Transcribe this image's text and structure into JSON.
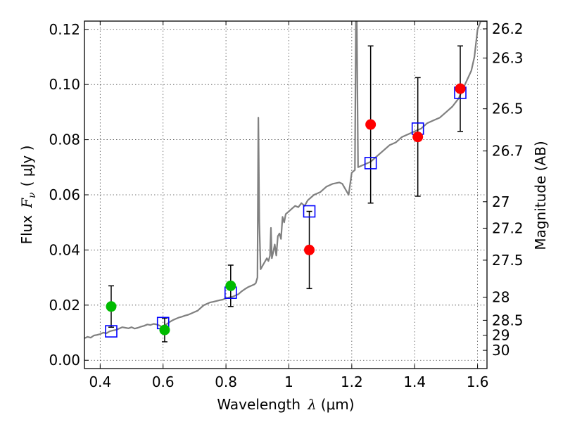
{
  "chart_data": {
    "type": "scatter",
    "xlabel_prefix": "Wavelength",
    "xlabel_symbol": "λ",
    "xlabel_unit": "(μm)",
    "ylabel_prefix": "Flux",
    "ylabel_symbol": "F",
    "ylabel_sub": "ν",
    "ylabel_unit": "( μJy )",
    "y2label": "Magnitude (AB)",
    "xlim": [
      0.35,
      1.63
    ],
    "ylim": [
      -0.003,
      0.123
    ],
    "xticks": [
      {
        "v": 0.4,
        "label": "0.4"
      },
      {
        "v": 0.6,
        "label": "0.6"
      },
      {
        "v": 0.8,
        "label": "0.8"
      },
      {
        "v": 1.0,
        "label": "1"
      },
      {
        "v": 1.2,
        "label": "1.2"
      },
      {
        "v": 1.4,
        "label": "1.4"
      },
      {
        "v": 1.6,
        "label": "1.6"
      }
    ],
    "yticks": [
      {
        "v": 0.0,
        "label": "0.00"
      },
      {
        "v": 0.02,
        "label": "0.02"
      },
      {
        "v": 0.04,
        "label": "0.04"
      },
      {
        "v": 0.06,
        "label": "0.06"
      },
      {
        "v": 0.08,
        "label": "0.08"
      },
      {
        "v": 0.1,
        "label": "0.10"
      },
      {
        "v": 0.12,
        "label": "0.12"
      }
    ],
    "mag_ticks": [
      {
        "flux": 0.1202,
        "label": "26.2"
      },
      {
        "flux": 0.1096,
        "label": "26.3"
      },
      {
        "flux": 0.0912,
        "label": "26.5"
      },
      {
        "flux": 0.0759,
        "label": "26.7"
      },
      {
        "flux": 0.0575,
        "label": "27"
      },
      {
        "flux": 0.0479,
        "label": "27.2"
      },
      {
        "flux": 0.0363,
        "label": "27.5"
      },
      {
        "flux": 0.0229,
        "label": "28"
      },
      {
        "flux": 0.0145,
        "label": "28.5"
      },
      {
        "flux": 0.0091,
        "label": "29"
      },
      {
        "flux": 0.0036,
        "label": "30"
      }
    ],
    "series": [
      {
        "name": "model-spectrum",
        "type": "line",
        "color": "#808080",
        "points": [
          [
            0.35,
            0.008
          ],
          [
            0.36,
            0.0085
          ],
          [
            0.37,
            0.0082
          ],
          [
            0.38,
            0.009
          ],
          [
            0.39,
            0.0092
          ],
          [
            0.4,
            0.0095
          ],
          [
            0.41,
            0.01
          ],
          [
            0.42,
            0.0098
          ],
          [
            0.43,
            0.0105
          ],
          [
            0.44,
            0.0108
          ],
          [
            0.45,
            0.011
          ],
          [
            0.46,
            0.0115
          ],
          [
            0.47,
            0.012
          ],
          [
            0.48,
            0.0118
          ],
          [
            0.49,
            0.0116
          ],
          [
            0.5,
            0.012
          ],
          [
            0.51,
            0.0115
          ],
          [
            0.52,
            0.0118
          ],
          [
            0.53,
            0.0122
          ],
          [
            0.54,
            0.0125
          ],
          [
            0.55,
            0.013
          ],
          [
            0.56,
            0.0128
          ],
          [
            0.57,
            0.0132
          ],
          [
            0.58,
            0.013
          ],
          [
            0.59,
            0.0125
          ],
          [
            0.6,
            0.012
          ],
          [
            0.61,
            0.013
          ],
          [
            0.62,
            0.0138
          ],
          [
            0.63,
            0.0145
          ],
          [
            0.64,
            0.015
          ],
          [
            0.65,
            0.0155
          ],
          [
            0.66,
            0.0158
          ],
          [
            0.67,
            0.0162
          ],
          [
            0.68,
            0.0165
          ],
          [
            0.69,
            0.017
          ],
          [
            0.7,
            0.0175
          ],
          [
            0.71,
            0.018
          ],
          [
            0.72,
            0.019
          ],
          [
            0.73,
            0.02
          ],
          [
            0.74,
            0.0205
          ],
          [
            0.75,
            0.021
          ],
          [
            0.76,
            0.0212
          ],
          [
            0.77,
            0.0215
          ],
          [
            0.78,
            0.0218
          ],
          [
            0.79,
            0.022
          ],
          [
            0.8,
            0.0225
          ],
          [
            0.81,
            0.0228
          ],
          [
            0.82,
            0.023
          ],
          [
            0.83,
            0.0235
          ],
          [
            0.84,
            0.024
          ],
          [
            0.85,
            0.025
          ],
          [
            0.86,
            0.0258
          ],
          [
            0.87,
            0.0265
          ],
          [
            0.88,
            0.027
          ],
          [
            0.89,
            0.0275
          ],
          [
            0.895,
            0.028
          ],
          [
            0.9,
            0.03
          ],
          [
            0.903,
            0.088
          ],
          [
            0.906,
            0.05
          ],
          [
            0.91,
            0.033
          ],
          [
            0.92,
            0.035
          ],
          [
            0.93,
            0.037
          ],
          [
            0.935,
            0.036
          ],
          [
            0.94,
            0.038
          ],
          [
            0.943,
            0.048
          ],
          [
            0.946,
            0.037
          ],
          [
            0.95,
            0.039
          ],
          [
            0.955,
            0.042
          ],
          [
            0.96,
            0.038
          ],
          [
            0.965,
            0.045
          ],
          [
            0.97,
            0.046
          ],
          [
            0.975,
            0.044
          ],
          [
            0.98,
            0.052
          ],
          [
            0.985,
            0.05
          ],
          [
            0.99,
            0.053
          ],
          [
            1.0,
            0.054
          ],
          [
            1.01,
            0.055
          ],
          [
            1.02,
            0.056
          ],
          [
            1.03,
            0.0555
          ],
          [
            1.04,
            0.057
          ],
          [
            1.05,
            0.056
          ],
          [
            1.06,
            0.058
          ],
          [
            1.08,
            0.06
          ],
          [
            1.1,
            0.061
          ],
          [
            1.12,
            0.063
          ],
          [
            1.14,
            0.064
          ],
          [
            1.16,
            0.0645
          ],
          [
            1.17,
            0.064
          ],
          [
            1.18,
            0.062
          ],
          [
            1.19,
            0.06
          ],
          [
            1.2,
            0.068
          ],
          [
            1.21,
            0.069
          ],
          [
            1.213,
            0.123
          ],
          [
            1.216,
            0.123
          ],
          [
            1.22,
            0.07
          ],
          [
            1.24,
            0.071
          ],
          [
            1.26,
            0.072
          ],
          [
            1.28,
            0.074
          ],
          [
            1.3,
            0.076
          ],
          [
            1.32,
            0.078
          ],
          [
            1.34,
            0.079
          ],
          [
            1.36,
            0.081
          ],
          [
            1.38,
            0.082
          ],
          [
            1.4,
            0.083
          ],
          [
            1.42,
            0.084
          ],
          [
            1.44,
            0.086
          ],
          [
            1.46,
            0.087
          ],
          [
            1.48,
            0.088
          ],
          [
            1.5,
            0.09
          ],
          [
            1.52,
            0.092
          ],
          [
            1.54,
            0.095
          ],
          [
            1.56,
            0.1
          ],
          [
            1.58,
            0.105
          ],
          [
            1.59,
            0.11
          ],
          [
            1.6,
            0.12
          ],
          [
            1.61,
            0.123
          ],
          [
            1.62,
            0.123
          ],
          [
            1.63,
            0.123
          ]
        ]
      },
      {
        "name": "model-photometry",
        "type": "square",
        "color": "#0000ff",
        "points": [
          [
            0.435,
            0.0105
          ],
          [
            0.6,
            0.0135
          ],
          [
            0.815,
            0.0245
          ],
          [
            1.065,
            0.054
          ],
          [
            1.26,
            0.0715
          ],
          [
            1.41,
            0.084
          ],
          [
            1.545,
            0.097
          ]
        ]
      },
      {
        "name": "observed-optical",
        "type": "circle",
        "color": "#00bb00",
        "points": [
          {
            "x": 0.435,
            "y": 0.0195,
            "err": 0.0075
          },
          {
            "x": 0.605,
            "y": 0.011,
            "err": 0.0043
          },
          {
            "x": 0.815,
            "y": 0.027,
            "err": 0.0075
          }
        ]
      },
      {
        "name": "observed-infrared",
        "type": "circle",
        "color": "#ff0000",
        "points": [
          {
            "x": 1.065,
            "y": 0.04,
            "err": 0.014
          },
          {
            "x": 1.26,
            "y": 0.0855,
            "err": 0.0285
          },
          {
            "x": 1.41,
            "y": 0.081,
            "err": 0.0215
          },
          {
            "x": 1.545,
            "y": 0.0985,
            "err": 0.0155
          }
        ]
      }
    ]
  }
}
